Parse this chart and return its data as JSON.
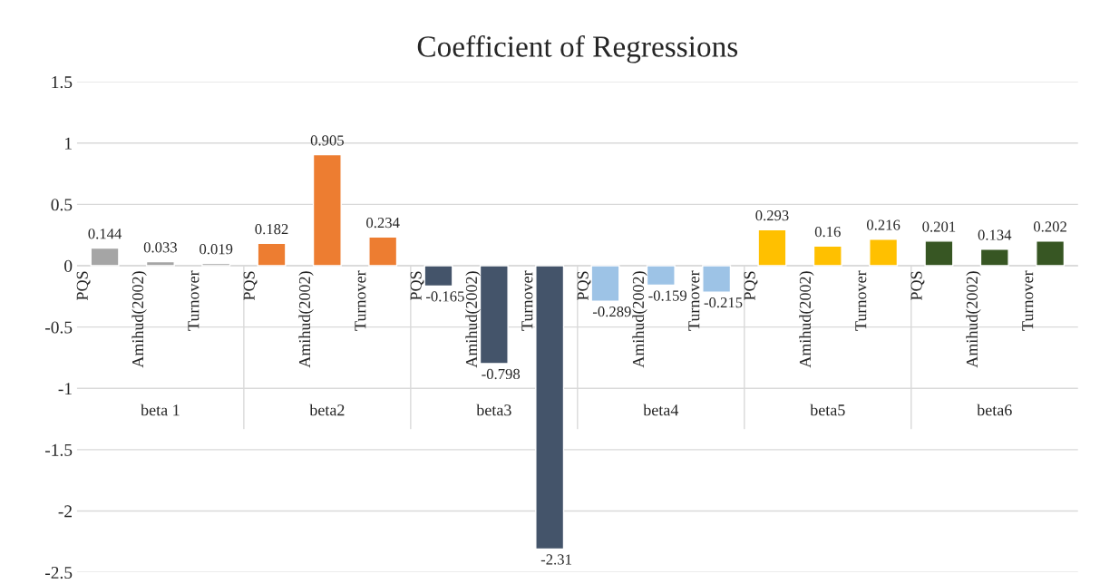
{
  "chart_data": {
    "type": "bar",
    "title": "Coefficient of Regressions",
    "categories": [
      "PQS",
      "Amihud(2002)",
      "Turnover",
      "PQS",
      "Amihud(2002)",
      "Turnover",
      "PQS",
      "Amihud(2002)",
      "Turnover",
      "PQS",
      "Amihud(2002)",
      "Turnover",
      "PQS",
      "Amihud(2002)",
      "Turnover",
      "PQS",
      "Amihud(2002)",
      "Turnover"
    ],
    "values": [
      0.144,
      0.033,
      0.019,
      0.182,
      0.905,
      0.234,
      -0.165,
      -0.798,
      -2.31,
      -0.289,
      -0.159,
      -0.215,
      0.293,
      0.16,
      0.216,
      0.201,
      0.134,
      0.202
    ],
    "colors": [
      "#a5a5a5",
      "#a5a5a5",
      "#a5a5a5",
      "#ed7d31",
      "#ed7d31",
      "#ed7d31",
      "#44546a",
      "#44546a",
      "#44546a",
      "#9dc3e6",
      "#9dc3e6",
      "#9dc3e6",
      "#ffc000",
      "#ffc000",
      "#ffc000",
      "#375623",
      "#375623",
      "#375623"
    ],
    "annotations": [
      "beta 1",
      "beta2",
      "beta3",
      "beta4",
      "beta5",
      "beta6"
    ],
    "ylim": [
      -2.5,
      1.5
    ],
    "yticks": [
      -2.5,
      -2,
      -1.5,
      -1,
      -0.5,
      0,
      0.5,
      1,
      1.5
    ],
    "grid": "y",
    "data_labels": true
  }
}
